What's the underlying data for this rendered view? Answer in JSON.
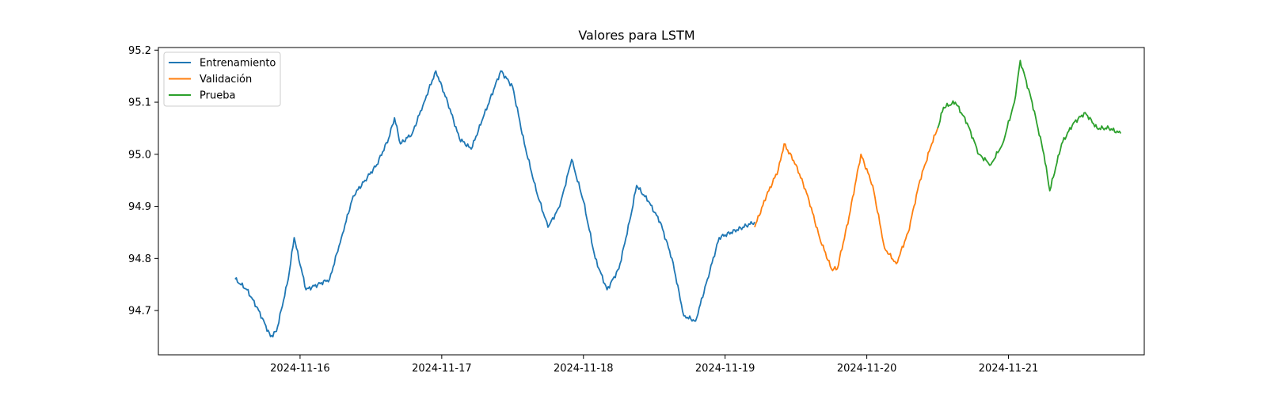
{
  "chart_data": {
    "type": "line",
    "title": "Valores para LSTM",
    "xlabel": "",
    "ylabel": "",
    "x_range": [
      "2024-11-15T00:00",
      "2024-11-21T23:00"
    ],
    "x_ticks": [
      "2024-11-16",
      "2024-11-17",
      "2024-11-18",
      "2024-11-19",
      "2024-11-20",
      "2024-11-21"
    ],
    "ylim": [
      94.615,
      95.205
    ],
    "y_ticks": [
      94.7,
      94.8,
      94.9,
      95.0,
      95.1,
      95.2
    ],
    "y_tick_labels": [
      "94.7",
      "94.8",
      "94.9",
      "95.0",
      "95.1",
      "95.2"
    ],
    "grid": false,
    "legend_position": "top-left",
    "series": [
      {
        "name": "Entrenamiento",
        "color": "#1f77b4",
        "points": [
          [
            "2024-11-15T13:00",
            94.76
          ],
          [
            "2024-11-15T15:00",
            94.74
          ],
          [
            "2024-11-15T17:00",
            94.7
          ],
          [
            "2024-11-15T19:00",
            94.65
          ],
          [
            "2024-11-15T20:00",
            94.66
          ],
          [
            "2024-11-15T22:00",
            94.76
          ],
          [
            "2024-11-15T23:00",
            94.84
          ],
          [
            "2024-11-16T01:00",
            94.74
          ],
          [
            "2024-11-16T03:00",
            94.75
          ],
          [
            "2024-11-16T05:00",
            94.76
          ],
          [
            "2024-11-16T07:00",
            94.84
          ],
          [
            "2024-11-16T09:00",
            94.92
          ],
          [
            "2024-11-16T11:00",
            94.95
          ],
          [
            "2024-11-16T13:00",
            94.98
          ],
          [
            "2024-11-16T15:00",
            95.03
          ],
          [
            "2024-11-16T16:00",
            95.07
          ],
          [
            "2024-11-16T17:00",
            95.02
          ],
          [
            "2024-11-16T19:00",
            95.04
          ],
          [
            "2024-11-16T21:00",
            95.1
          ],
          [
            "2024-11-16T23:00",
            95.16
          ],
          [
            "2024-11-17T01:00",
            95.1
          ],
          [
            "2024-11-17T03:00",
            95.03
          ],
          [
            "2024-11-17T05:00",
            95.01
          ],
          [
            "2024-11-17T07:00",
            95.07
          ],
          [
            "2024-11-17T09:00",
            95.13
          ],
          [
            "2024-11-17T10:00",
            95.16
          ],
          [
            "2024-11-17T12:00",
            95.13
          ],
          [
            "2024-11-17T14:00",
            95.02
          ],
          [
            "2024-11-17T16:00",
            94.93
          ],
          [
            "2024-11-17T18:00",
            94.86
          ],
          [
            "2024-11-17T20:00",
            94.9
          ],
          [
            "2024-11-17T22:00",
            94.99
          ],
          [
            "2024-11-18T00:00",
            94.91
          ],
          [
            "2024-11-18T02:00",
            94.8
          ],
          [
            "2024-11-18T04:00",
            94.74
          ],
          [
            "2024-11-18T06:00",
            94.78
          ],
          [
            "2024-11-18T08:00",
            94.88
          ],
          [
            "2024-11-18T09:00",
            94.94
          ],
          [
            "2024-11-18T11:00",
            94.91
          ],
          [
            "2024-11-18T13:00",
            94.87
          ],
          [
            "2024-11-18T15:00",
            94.8
          ],
          [
            "2024-11-18T17:00",
            94.69
          ],
          [
            "2024-11-18T19:00",
            94.68
          ],
          [
            "2024-11-18T21:00",
            94.76
          ],
          [
            "2024-11-18T23:00",
            94.84
          ],
          [
            "2024-11-19T01:00",
            94.85
          ],
          [
            "2024-11-19T03:00",
            94.86
          ],
          [
            "2024-11-19T05:00",
            94.87
          ]
        ]
      },
      {
        "name": "Validación",
        "color": "#ff7f0e",
        "points": [
          [
            "2024-11-19T05:00",
            94.86
          ],
          [
            "2024-11-19T07:00",
            94.92
          ],
          [
            "2024-11-19T09:00",
            94.97
          ],
          [
            "2024-11-19T10:00",
            95.02
          ],
          [
            "2024-11-19T12:00",
            94.98
          ],
          [
            "2024-11-19T14:00",
            94.92
          ],
          [
            "2024-11-19T16:00",
            94.84
          ],
          [
            "2024-11-19T18:00",
            94.78
          ],
          [
            "2024-11-19T19:00",
            94.78
          ],
          [
            "2024-11-19T21:00",
            94.88
          ],
          [
            "2024-11-19T23:00",
            95.0
          ],
          [
            "2024-11-20T01:00",
            94.94
          ],
          [
            "2024-11-20T03:00",
            94.82
          ],
          [
            "2024-11-20T05:00",
            94.79
          ],
          [
            "2024-11-20T07:00",
            94.85
          ],
          [
            "2024-11-20T09:00",
            94.95
          ],
          [
            "2024-11-20T11:00",
            95.02
          ],
          [
            "2024-11-20T12:00",
            95.05
          ]
        ]
      },
      {
        "name": "Prueba",
        "color": "#2ca02c",
        "points": [
          [
            "2024-11-20T12:00",
            95.05
          ],
          [
            "2024-11-20T13:00",
            95.09
          ],
          [
            "2024-11-20T15:00",
            95.1
          ],
          [
            "2024-11-20T17:00",
            95.06
          ],
          [
            "2024-11-20T19:00",
            95.0
          ],
          [
            "2024-11-20T21:00",
            94.98
          ],
          [
            "2024-11-20T23:00",
            95.02
          ],
          [
            "2024-11-21T01:00",
            95.1
          ],
          [
            "2024-11-21T02:00",
            95.18
          ],
          [
            "2024-11-21T04:00",
            95.1
          ],
          [
            "2024-11-21T06:00",
            95.0
          ],
          [
            "2024-11-21T07:00",
            94.93
          ],
          [
            "2024-11-21T09:00",
            95.02
          ],
          [
            "2024-11-21T11:00",
            95.06
          ],
          [
            "2024-11-21T13:00",
            95.08
          ],
          [
            "2024-11-21T15:00",
            95.05
          ],
          [
            "2024-11-21T17:00",
            95.05
          ],
          [
            "2024-11-21T19:00",
            95.04
          ]
        ]
      }
    ]
  }
}
